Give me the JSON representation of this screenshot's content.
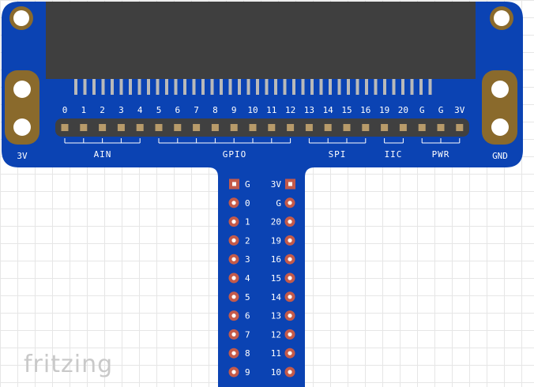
{
  "board": {
    "colors": {
      "pcb": "#0b43b3",
      "connector": "#3f3f3f",
      "pad": "#8a6a2c",
      "header": "#404040",
      "header_pin": "#b89b6a",
      "breakout_pad": "#c45a4a"
    },
    "header_pin_labels": [
      "0",
      "1",
      "2",
      "3",
      "4",
      "5",
      "6",
      "7",
      "8",
      "9",
      "10",
      "11",
      "12",
      "13",
      "14",
      "15",
      "16",
      "19",
      "20",
      "G",
      "G",
      "3V"
    ],
    "groups": [
      {
        "label": "AIN"
      },
      {
        "label": "GPIO"
      },
      {
        "label": "SPI"
      },
      {
        "label": "IIC"
      },
      {
        "label": "PWR"
      }
    ],
    "left_pad_label": "3V",
    "right_pad_label": "GND"
  },
  "breakout": {
    "left_labels": [
      "G",
      "0",
      "1",
      "2",
      "3",
      "4",
      "5",
      "6",
      "7",
      "8",
      "9"
    ],
    "right_labels": [
      "3V",
      "G",
      "20",
      "19",
      "16",
      "15",
      "14",
      "13",
      "12",
      "11",
      "10"
    ]
  },
  "watermark": "fritzing"
}
